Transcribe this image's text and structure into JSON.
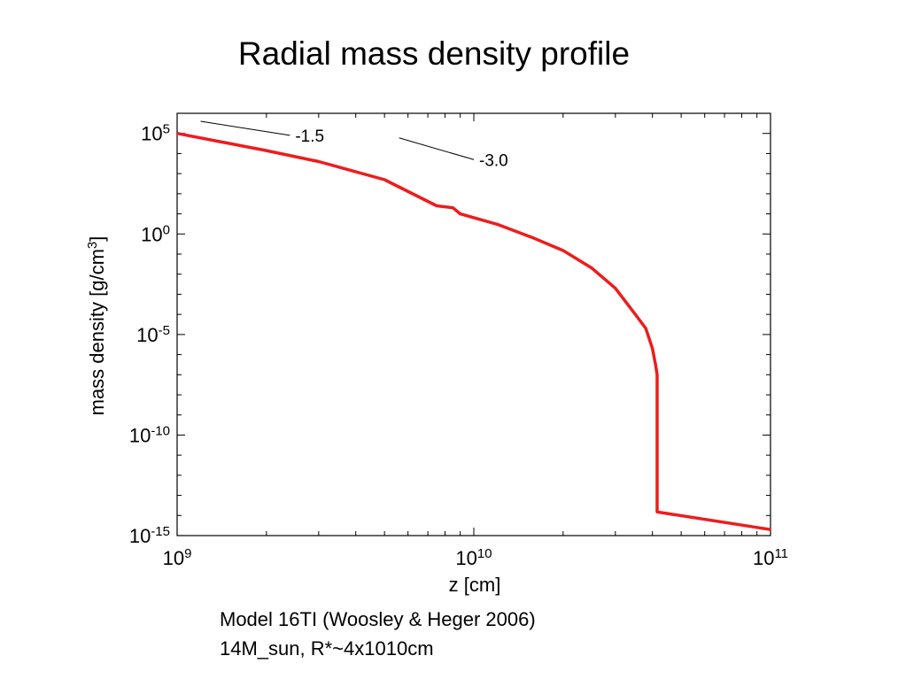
{
  "slide": {
    "title": "Radial mass density profile",
    "caption_line1": "Model 16TI (Woosley & Heger 2006)",
    "caption_line2": "14M_sun, R*~4x1010cm"
  },
  "chart_data": {
    "type": "line",
    "xlabel": "z [cm]",
    "ylabel_prefix": "mass density [g/cm",
    "ylabel_sup": "3",
    "ylabel_suffix": "]",
    "x_scale": "log",
    "y_scale": "log",
    "xlim": [
      1000000000.0,
      100000000000.0
    ],
    "ylim": [
      1e-15,
      1000000.0
    ],
    "x_ticks": [
      {
        "value": 1000000000.0,
        "base": "10",
        "exp": "9"
      },
      {
        "value": 10000000000.0,
        "base": "10",
        "exp": "10"
      },
      {
        "value": 100000000000.0,
        "base": "10",
        "exp": "11"
      }
    ],
    "y_ticks": [
      {
        "value": 1e-15,
        "base": "10",
        "exp": "-15"
      },
      {
        "value": 1e-10,
        "base": "10",
        "exp": "-10"
      },
      {
        "value": 1e-05,
        "base": "10",
        "exp": "-5"
      },
      {
        "value": 1,
        "base": "10",
        "exp": "0"
      },
      {
        "value": 100000.0,
        "base": "10",
        "exp": "5"
      }
    ],
    "grid": false,
    "line_color": "#ee1c1c",
    "series": [
      {
        "x": [
          1000000000.0,
          2000000000.0,
          3000000000.0,
          5000000000.0,
          7500000000.0,
          8500000000.0,
          9000000000.0,
          12000000000.0,
          16000000000.0,
          20000000000.0,
          25000000000.0,
          30000000000.0,
          35000000000.0,
          38000000000.0,
          40000000000.0,
          41000000000.0,
          41500000000.0,
          41500000000.0,
          100000000000.0
        ],
        "y": [
          100000.0,
          14000.0,
          4000.0,
          500.0,
          25.0,
          20.0,
          10.0,
          3.0,
          0.6,
          0.15,
          0.02,
          0.002,
          0.0001,
          2e-05,
          2e-06,
          3e-07,
          1e-07,
          1.5e-14,
          2e-15
        ]
      }
    ],
    "annotations": [
      {
        "label": "-1.5",
        "x1": 1200000000.0,
        "y1": 400000.0,
        "x2": 2400000000.0,
        "y2": 80000.0
      },
      {
        "label": "-3.0",
        "x1": 5600000000.0,
        "y1": 60000.0,
        "x2": 10000000000.0,
        "y2": 5000.0
      }
    ]
  }
}
